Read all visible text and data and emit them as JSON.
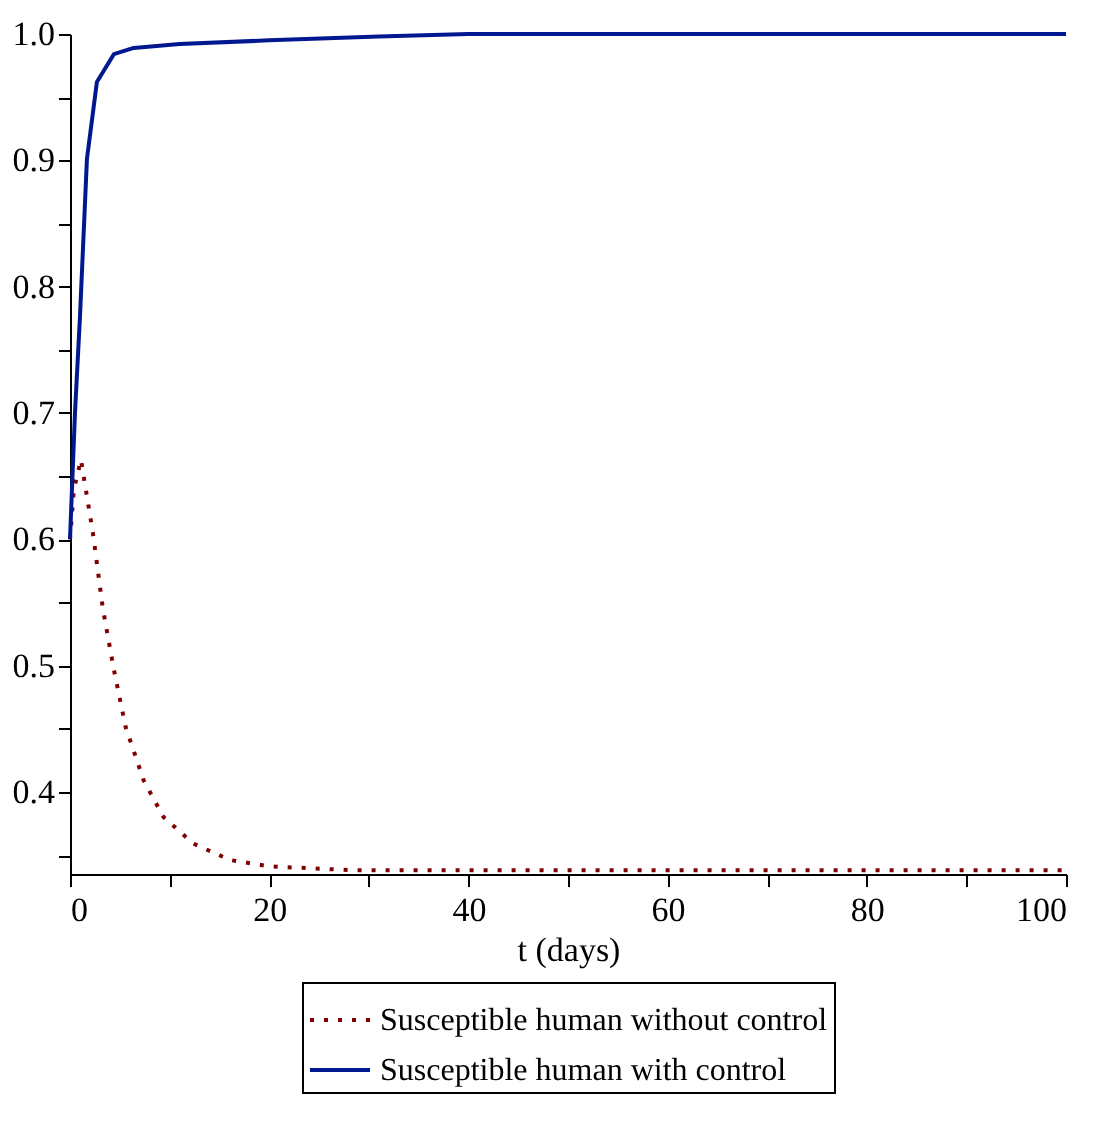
{
  "chart_data": {
    "type": "line",
    "xlabel": "t (days)",
    "xlim": [
      0,
      100
    ],
    "xticks": [
      0,
      {
        "value": 10,
        "label": null
      },
      20,
      {
        "value": 30,
        "label": null
      },
      40,
      {
        "value": 50,
        "label": null
      },
      60,
      {
        "value": 70,
        "label": null
      },
      80,
      {
        "value": 90,
        "label": null
      },
      100
    ],
    "ylim": [
      0.335,
      1.0
    ],
    "yticks": [
      {
        "value": 0.35,
        "label": null
      },
      0.4,
      {
        "value": 0.45,
        "label": null
      },
      0.5,
      {
        "value": 0.55,
        "label": null
      },
      0.6,
      {
        "value": 0.65,
        "label": null
      },
      0.7,
      {
        "value": 0.75,
        "label": null
      },
      0.8,
      {
        "value": 0.85,
        "label": null
      },
      0.9,
      {
        "value": 0.95,
        "label": null
      },
      {
        "value": 1.0,
        "label": "1.0"
      }
    ],
    "legend": "bottom",
    "grid": false,
    "series": [
      {
        "name": "Susceptible human without control",
        "color": "#800000",
        "line_style": "dotted",
        "x": [
          0,
          0.4,
          1.1,
          2.3,
          3.3,
          4.4,
          5.6,
          7.4,
          9.4,
          12.4,
          16.1,
          20.1,
          28.4,
          40,
          60,
          80,
          100
        ],
        "values": [
          0.6,
          0.64,
          0.663,
          0.605,
          0.545,
          0.497,
          0.451,
          0.409,
          0.38,
          0.359,
          0.346,
          0.341,
          0.338,
          0.338,
          0.338,
          0.338,
          0.338
        ]
      },
      {
        "name": "Susceptible human with control",
        "color": "#00188f",
        "line_style": "solid",
        "x": [
          0,
          0.5,
          1.0,
          1.7,
          2.7,
          4.4,
          6.4,
          11,
          20,
          31,
          40,
          60,
          80,
          100
        ],
        "values": [
          0.6,
          0.7,
          0.776,
          0.901,
          0.962,
          0.984,
          0.989,
          0.992,
          0.995,
          0.998,
          1.0,
          1.0,
          1.0,
          1.0
        ]
      }
    ]
  }
}
